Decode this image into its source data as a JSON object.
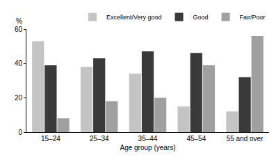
{
  "chart_data": {
    "type": "bar",
    "x_label": "Age group (years)",
    "y_label": "%",
    "categories": [
      "15–24",
      "25–34",
      "35–44",
      "45–54",
      "55 and over"
    ],
    "series": [
      {
        "name": "Excellent/Very good",
        "color": "#c4c4c4",
        "values": [
          53,
          38,
          34,
          15,
          12
        ]
      },
      {
        "name": "Good",
        "color": "#3a3a3a",
        "values": [
          39,
          43,
          47,
          46,
          32
        ]
      },
      {
        "name": "Fair/Poor",
        "color": "#a0a0a0",
        "values": [
          8,
          18,
          20,
          39,
          56
        ]
      }
    ],
    "ylim": [
      0,
      60
    ],
    "yticks": [
      0,
      20,
      40,
      60
    ],
    "grid": false,
    "legend": "top"
  }
}
